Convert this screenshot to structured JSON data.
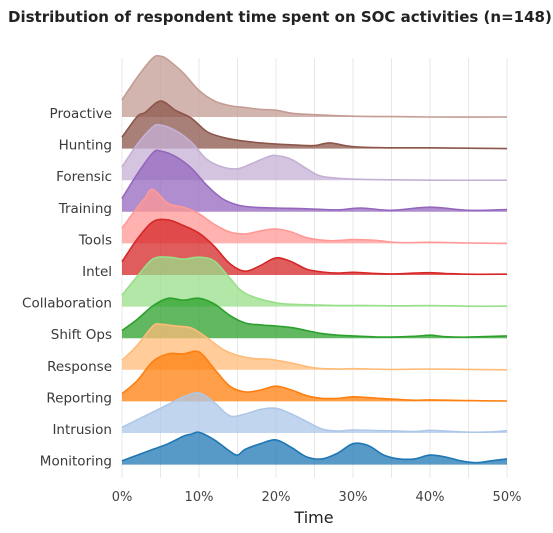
{
  "chart_data": {
    "type": "ridgeline",
    "title": "Distribution of respondent time spent on SOC activities (n=148)",
    "xlabel": "Time",
    "ylabel": "",
    "x_ticks": [
      "0%",
      "10%",
      "20%",
      "30%",
      "40%",
      "50%"
    ],
    "xlim": [
      0,
      50
    ],
    "grid": "vertical",
    "series": [
      {
        "name": "Proactive",
        "color": "#c49c94",
        "x": [
          0,
          2,
          4,
          5,
          6,
          8,
          10,
          12,
          14,
          16,
          18,
          20,
          22,
          25,
          30,
          35,
          40,
          50
        ],
        "density": [
          0.45,
          1.05,
          1.55,
          1.6,
          1.5,
          1.15,
          0.7,
          0.42,
          0.3,
          0.25,
          0.2,
          0.18,
          0.1,
          0.06,
          0.02,
          0.01,
          0.0,
          0.0
        ]
      },
      {
        "name": "Hunting",
        "color": "#8c564b",
        "x": [
          0,
          2,
          3,
          5,
          7,
          9,
          11,
          13,
          15,
          18,
          22,
          25,
          27,
          30,
          35,
          40,
          50
        ],
        "density": [
          0.3,
          0.85,
          0.95,
          1.25,
          1.0,
          0.8,
          0.45,
          0.3,
          0.22,
          0.15,
          0.1,
          0.08,
          0.15,
          0.05,
          0.02,
          0.02,
          0.0
        ]
      },
      {
        "name": "Forensic",
        "color": "#c5b0d5",
        "x": [
          0,
          2,
          4,
          5,
          7,
          9,
          11,
          13,
          15,
          17,
          19,
          20,
          22,
          24,
          26,
          30,
          35,
          40,
          50
        ],
        "density": [
          0.35,
          0.95,
          1.4,
          1.45,
          1.3,
          1.0,
          0.55,
          0.35,
          0.3,
          0.45,
          0.62,
          0.65,
          0.55,
          0.3,
          0.1,
          0.03,
          0.01,
          0.0,
          0.0
        ]
      },
      {
        "name": "Training",
        "color": "#9467bd",
        "x": [
          0,
          2,
          4,
          5,
          7,
          9,
          11,
          13,
          15,
          17,
          20,
          24,
          28,
          31,
          35,
          40,
          45,
          50
        ],
        "density": [
          0.35,
          1.0,
          1.55,
          1.6,
          1.45,
          1.15,
          0.7,
          0.35,
          0.18,
          0.12,
          0.1,
          0.08,
          0.05,
          0.1,
          0.04,
          0.12,
          0.04,
          0.06
        ]
      },
      {
        "name": "Tools",
        "color": "#ff9896",
        "x": [
          0,
          2,
          3,
          4,
          6,
          8,
          10,
          12,
          14,
          16,
          18,
          20,
          22,
          24,
          27,
          30,
          33,
          36,
          40,
          45,
          50
        ],
        "density": [
          0.4,
          0.95,
          1.2,
          1.42,
          1.05,
          0.95,
          0.78,
          0.5,
          0.3,
          0.25,
          0.33,
          0.38,
          0.3,
          0.15,
          0.07,
          0.1,
          0.08,
          0.02,
          0.03,
          0.01,
          0.0
        ]
      },
      {
        "name": "Intel",
        "color": "#d62728",
        "x": [
          0,
          2,
          4,
          6,
          8,
          10,
          12,
          14,
          16,
          18,
          20,
          22,
          24,
          26,
          28,
          30,
          32,
          35,
          38,
          40,
          42,
          45,
          50
        ],
        "density": [
          0.35,
          0.95,
          1.4,
          1.45,
          1.3,
          1.1,
          0.75,
          0.3,
          0.1,
          0.25,
          0.45,
          0.35,
          0.15,
          0.08,
          0.05,
          0.07,
          0.05,
          0.03,
          0.05,
          0.06,
          0.04,
          0.02,
          0.02
        ]
      },
      {
        "name": "Collaboration",
        "color": "#98df8a",
        "x": [
          0,
          2,
          4,
          6,
          8,
          10,
          12,
          14,
          16,
          20,
          24,
          28,
          32,
          36,
          40,
          45,
          50
        ],
        "density": [
          0.3,
          0.8,
          1.25,
          1.3,
          1.25,
          1.3,
          1.2,
          0.75,
          0.35,
          0.1,
          0.05,
          0.03,
          0.03,
          0.02,
          0.03,
          0.01,
          0.01
        ]
      },
      {
        "name": "Shift Ops",
        "color": "#2ca02c",
        "x": [
          0,
          2,
          4,
          6,
          8,
          10,
          12,
          14,
          16,
          18,
          20,
          22,
          24,
          26,
          28,
          30,
          34,
          38,
          40,
          42,
          45,
          50
        ],
        "density": [
          0.2,
          0.5,
          0.85,
          1.05,
          1.0,
          1.05,
          0.9,
          0.6,
          0.4,
          0.35,
          0.32,
          0.28,
          0.2,
          0.12,
          0.08,
          0.06,
          0.03,
          0.05,
          0.08,
          0.04,
          0.03,
          0.06
        ]
      },
      {
        "name": "Response",
        "color": "#ffbb78",
        "x": [
          0,
          2,
          4,
          5,
          7,
          9,
          11,
          13,
          15,
          17,
          19,
          20,
          22,
          25,
          28,
          30,
          35,
          40,
          45,
          50
        ],
        "density": [
          0.25,
          0.65,
          1.15,
          1.2,
          1.15,
          1.1,
          0.85,
          0.55,
          0.38,
          0.3,
          0.28,
          0.25,
          0.18,
          0.05,
          0.02,
          0.03,
          0.01,
          0.02,
          0.01,
          0.0
        ]
      },
      {
        "name": "Reporting",
        "color": "#ff7f0e",
        "x": [
          0,
          2,
          4,
          6,
          8,
          10,
          12,
          14,
          16,
          18,
          20,
          22,
          24,
          26,
          28,
          30,
          32,
          35,
          38,
          40,
          45,
          50
        ],
        "density": [
          0.2,
          0.55,
          1.05,
          1.25,
          1.25,
          1.3,
          0.85,
          0.4,
          0.25,
          0.3,
          0.4,
          0.3,
          0.15,
          0.08,
          0.08,
          0.12,
          0.1,
          0.06,
          0.03,
          0.04,
          0.02,
          0.01
        ]
      },
      {
        "name": "Intrusion",
        "color": "#aec7e8",
        "x": [
          0,
          2,
          4,
          6,
          8,
          10,
          12,
          14,
          16,
          18,
          20,
          22,
          24,
          26,
          28,
          30,
          34,
          38,
          40,
          42,
          45,
          48,
          50
        ],
        "density": [
          0.15,
          0.35,
          0.55,
          0.75,
          0.95,
          1.05,
          0.8,
          0.45,
          0.5,
          0.62,
          0.65,
          0.5,
          0.3,
          0.1,
          0.05,
          0.08,
          0.06,
          0.04,
          0.07,
          0.05,
          0.02,
          0.03,
          0.06
        ]
      },
      {
        "name": "Monitoring",
        "color": "#1f77b4",
        "x": [
          0,
          2,
          4,
          6,
          8,
          9,
          10,
          12,
          14,
          15,
          16,
          18,
          20,
          22,
          24,
          26,
          28,
          30,
          32,
          34,
          36,
          38,
          40,
          42,
          44,
          46,
          48,
          50
        ],
        "density": [
          0.1,
          0.25,
          0.4,
          0.55,
          0.75,
          0.8,
          0.85,
          0.65,
          0.35,
          0.25,
          0.4,
          0.55,
          0.65,
          0.45,
          0.2,
          0.15,
          0.3,
          0.55,
          0.5,
          0.25,
          0.15,
          0.15,
          0.25,
          0.2,
          0.1,
          0.05,
          0.1,
          0.15
        ]
      }
    ]
  }
}
